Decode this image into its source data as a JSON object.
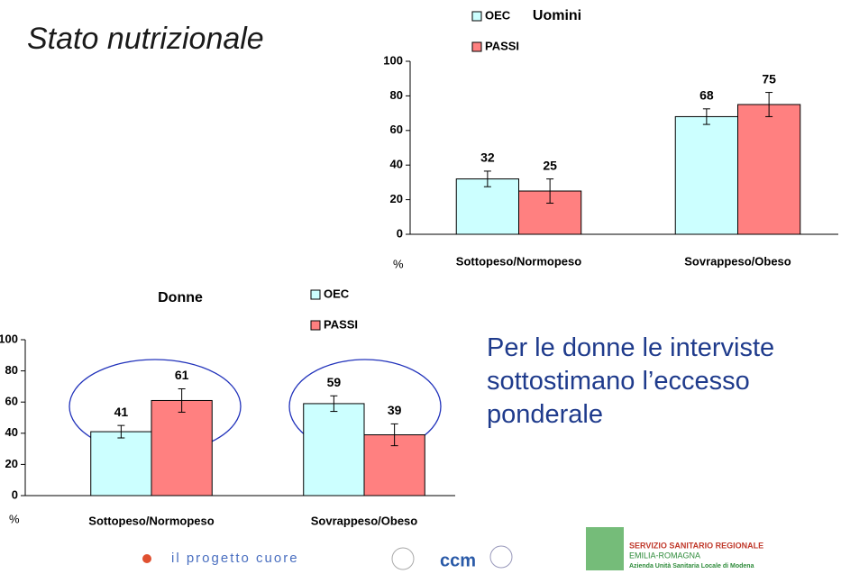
{
  "title": "Stato nutrizionale",
  "note": "Per le donne le interviste sottostimano l’eccesso ponderale",
  "logos": [
    "il progetto cuore",
    "ccm",
    "SERVIZIO SANITARIO REGIONALE",
    "EMILIA-ROMAGNA",
    "Azienda Unità Sanitaria Locale di Modena"
  ],
  "chart_data": [
    {
      "type": "bar",
      "title": "Uomini",
      "y_label": "%",
      "categories": [
        "Sottopeso/Normopeso",
        "Sovrappeso/Obeso"
      ],
      "series": [
        {
          "name": "OEC",
          "color": "#ccffff",
          "values": [
            32,
            68
          ],
          "errors": [
            4.5,
            4.5
          ]
        },
        {
          "name": "PASSI",
          "color": "#ff8080",
          "values": [
            25,
            75
          ],
          "errors": [
            7,
            7
          ]
        }
      ],
      "ylim": [
        0,
        100
      ],
      "yticks": [
        0,
        20,
        40,
        60,
        80,
        100
      ]
    },
    {
      "type": "bar",
      "title": "Donne",
      "y_label": "%",
      "categories": [
        "Sottopeso/Normopeso",
        "Sovrappeso/Obeso"
      ],
      "series": [
        {
          "name": "OEC",
          "color": "#ccffff",
          "values": [
            41,
            59
          ],
          "errors": [
            4,
            5
          ]
        },
        {
          "name": "PASSI",
          "color": "#ff8080",
          "values": [
            61,
            39
          ],
          "errors": [
            7.5,
            7
          ]
        }
      ],
      "ylim": [
        0,
        100
      ],
      "yticks": [
        0,
        20,
        40,
        60,
        80,
        100
      ]
    }
  ]
}
